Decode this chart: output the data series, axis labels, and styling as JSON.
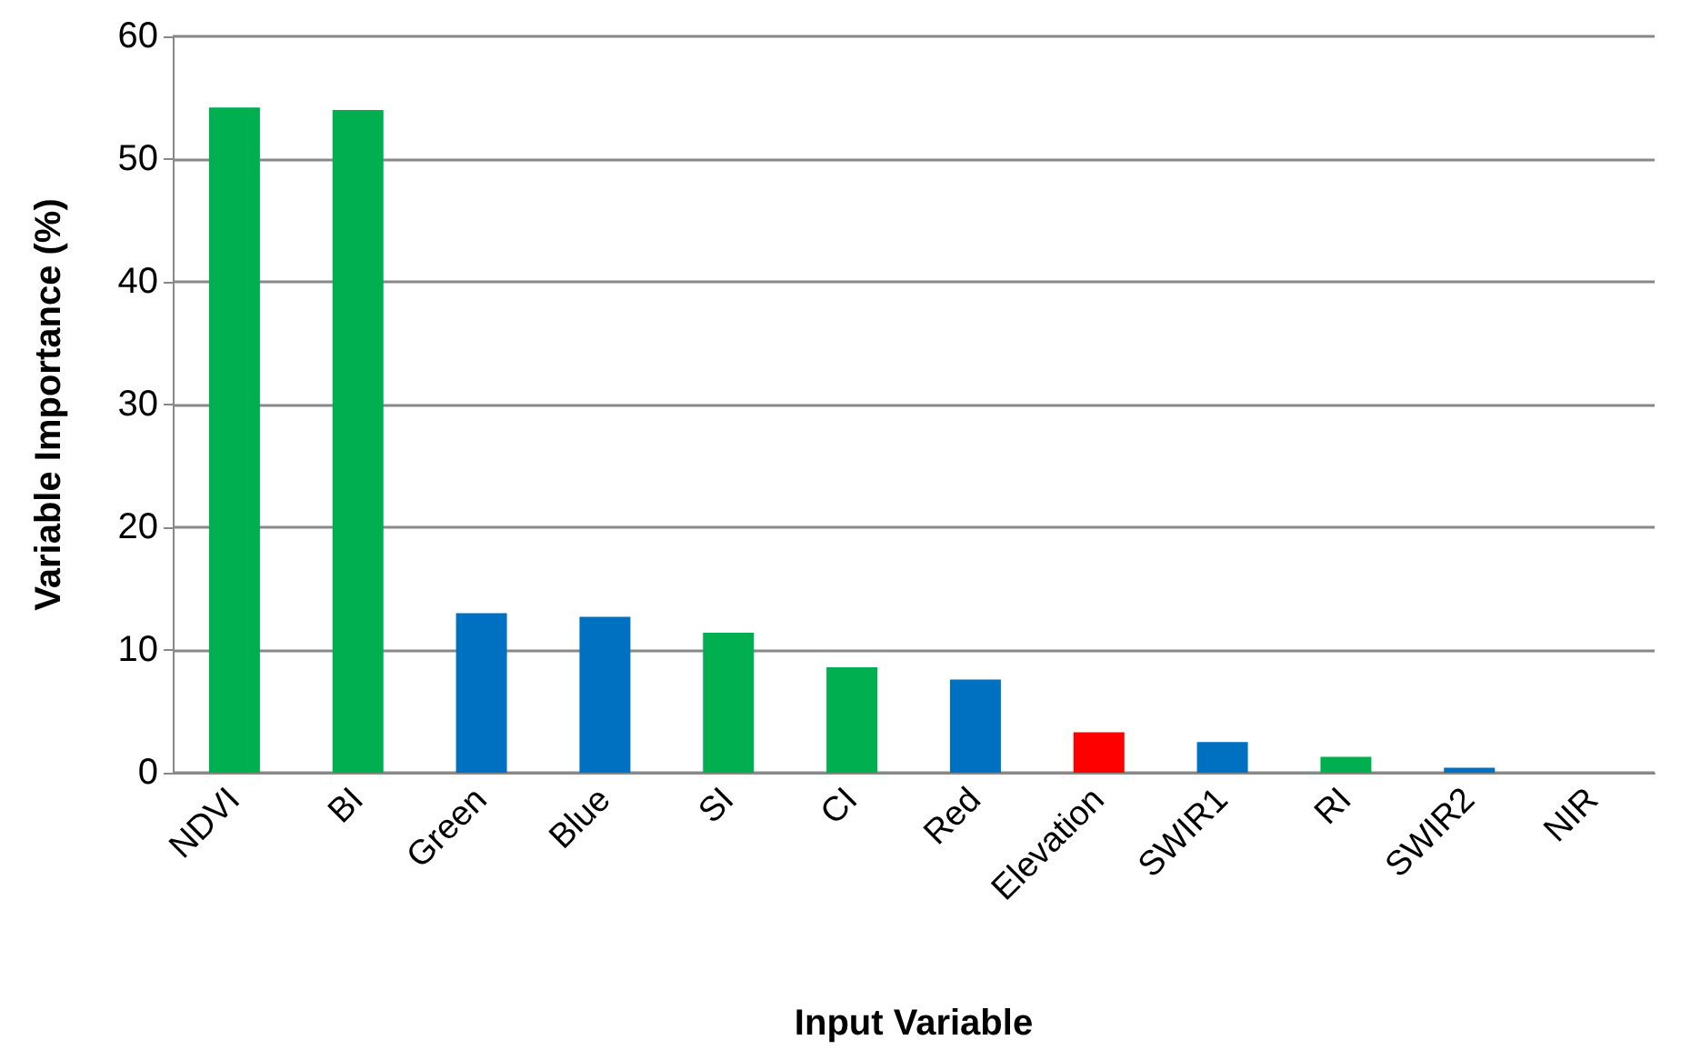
{
  "chart_data": {
    "type": "bar",
    "xlabel": "Input Variable",
    "ylabel": "Variable Importance (%)",
    "categories": [
      "NDVI",
      "BI",
      "Green",
      "Blue",
      "SI",
      "CI",
      "Red",
      "Elevation",
      "SWIR1",
      "RI",
      "SWIR2",
      "NIR"
    ],
    "values": [
      54.2,
      54.0,
      13.0,
      12.7,
      11.4,
      8.6,
      7.6,
      3.3,
      2.5,
      1.3,
      0.4,
      0
    ],
    "colors": [
      "#00b050",
      "#00b050",
      "#0070c0",
      "#0070c0",
      "#00b050",
      "#00b050",
      "#0070c0",
      "#ff0000",
      "#0070c0",
      "#00b050",
      "#0070c0",
      "#00b050"
    ],
    "ylim": [
      0,
      60
    ],
    "yticks": [
      0,
      10,
      20,
      30,
      40,
      50,
      60
    ],
    "grid": "y"
  }
}
